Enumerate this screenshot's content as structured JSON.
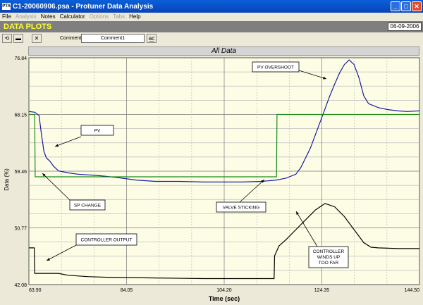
{
  "window": {
    "title": "C1-20060906.psa - Protuner Data Analysis",
    "icon_text": "PTA"
  },
  "menu": [
    {
      "label": "File",
      "enabled": true
    },
    {
      "label": "Analysis",
      "enabled": false
    },
    {
      "label": "Notes",
      "enabled": true
    },
    {
      "label": "Calculator",
      "enabled": true
    },
    {
      "label": "Options",
      "enabled": false
    },
    {
      "label": "Tabs",
      "enabled": false
    },
    {
      "label": "Help",
      "enabled": true
    }
  ],
  "header": {
    "title": "DATA PLOTS",
    "date": "06-09-2006"
  },
  "toolbar": {
    "comment_label": "Comment",
    "comment_value": "Comment1"
  },
  "chart_data": {
    "type": "line",
    "title": "All Data",
    "xlabel": "Time (sec)",
    "ylabel": "Data (%)",
    "xlim": [
      63.9,
      144.5
    ],
    "ylim": [
      42.08,
      76.84
    ],
    "xticks": [
      "63.90",
      "84.05",
      "104.20",
      "124.35",
      "144.50"
    ],
    "yticks": [
      "42.08",
      "50.77",
      "59.46",
      "68.15",
      "76.84"
    ],
    "grid": true,
    "series": [
      {
        "label": "PV",
        "color": "#1a1aa0",
        "points": [
          [
            63.9,
            68.6
          ],
          [
            65.1,
            68.5
          ],
          [
            66.0,
            68.0
          ],
          [
            66.5,
            65.0
          ],
          [
            67.0,
            62.5
          ],
          [
            67.5,
            61.5
          ],
          [
            68.2,
            61.0
          ],
          [
            69.0,
            60.2
          ],
          [
            70.0,
            59.5
          ],
          [
            72.0,
            59.2
          ],
          [
            74.0,
            59.0
          ],
          [
            76.0,
            58.9
          ],
          [
            78.0,
            58.8
          ],
          [
            82.0,
            58.5
          ],
          [
            86.0,
            58.1
          ],
          [
            90.0,
            57.9
          ],
          [
            95.0,
            57.9
          ],
          [
            100.0,
            57.8
          ],
          [
            104.0,
            57.8
          ],
          [
            108.0,
            57.8
          ],
          [
            112.0,
            57.9
          ],
          [
            115.0,
            58.1
          ],
          [
            117.0,
            58.4
          ],
          [
            119.0,
            59.0
          ],
          [
            120.0,
            60.0
          ],
          [
            121.0,
            61.5
          ],
          [
            122.0,
            63.0
          ],
          [
            123.0,
            65.0
          ],
          [
            124.0,
            67.0
          ],
          [
            125.0,
            69.0
          ],
          [
            126.0,
            71.0
          ],
          [
            127.0,
            72.8
          ],
          [
            128.0,
            74.5
          ],
          [
            129.0,
            75.8
          ],
          [
            130.0,
            76.5
          ],
          [
            131.0,
            75.8
          ],
          [
            132.0,
            73.8
          ],
          [
            133.0,
            71.0
          ],
          [
            134.0,
            69.8
          ],
          [
            136.0,
            69.2
          ],
          [
            138.0,
            68.9
          ],
          [
            140.0,
            68.7
          ],
          [
            142.0,
            68.6
          ],
          [
            144.5,
            68.7
          ]
        ]
      },
      {
        "label": "SP",
        "color": "#1a8a1a",
        "points": [
          [
            63.9,
            68.15
          ],
          [
            65.1,
            68.15
          ],
          [
            65.2,
            58.6
          ],
          [
            115.0,
            58.6
          ],
          [
            115.1,
            68.15
          ],
          [
            144.5,
            68.15
          ]
        ]
      },
      {
        "label": "Controller Output",
        "color": "#000000",
        "points": [
          [
            63.9,
            47.7
          ],
          [
            65.0,
            47.7
          ],
          [
            65.1,
            43.8
          ],
          [
            70.0,
            43.8
          ],
          [
            72.0,
            43.5
          ],
          [
            76.0,
            43.3
          ],
          [
            80.0,
            43.2
          ],
          [
            90.0,
            43.1
          ],
          [
            100.0,
            43.0
          ],
          [
            110.0,
            43.0
          ],
          [
            114.5,
            43.0
          ],
          [
            114.6,
            46.5
          ],
          [
            115.5,
            48.0
          ],
          [
            117.0,
            49.0
          ],
          [
            119.0,
            50.5
          ],
          [
            121.0,
            52.0
          ],
          [
            123.0,
            53.5
          ],
          [
            125.0,
            54.5
          ],
          [
            127.0,
            54.0
          ],
          [
            129.0,
            52.5
          ],
          [
            131.0,
            50.5
          ],
          [
            133.0,
            48.5
          ],
          [
            134.5,
            47.8
          ],
          [
            136.0,
            47.7
          ],
          [
            140.0,
            47.6
          ],
          [
            144.5,
            47.6
          ]
        ]
      }
    ],
    "annotations": [
      {
        "text": "PV OVERSHOOT"
      },
      {
        "text": "PV"
      },
      {
        "text": "SP CHANGE"
      },
      {
        "text": "VALVE STICKING"
      },
      {
        "text": "CONTROLLER OUTPUT"
      },
      {
        "text": "CONTROLLER WINDS UP TOO FAR"
      }
    ]
  }
}
